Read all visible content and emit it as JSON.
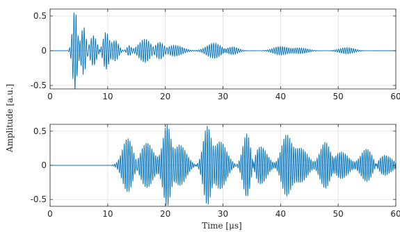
{
  "chart_data": [
    {
      "type": "line",
      "xlim": [
        0,
        60
      ],
      "ylim": [
        -0.55,
        0.6
      ],
      "xticks": [
        0,
        10,
        20,
        30,
        40,
        50,
        60
      ],
      "yticks": [
        -0.5,
        0,
        0.5
      ],
      "xtick_labels": [
        "0",
        "10",
        "20",
        "30",
        "40",
        "50",
        "60"
      ],
      "ytick_labels": [
        "-0.5",
        "0",
        "0.5"
      ],
      "grid": true,
      "line_color": "#0072BD",
      "carrier_freq_per_us": 2.7,
      "packets": [
        {
          "center": 4.3,
          "width": 0.55,
          "amp": 0.6
        },
        {
          "center": 5.8,
          "width": 0.6,
          "amp": 0.35
        },
        {
          "center": 7.5,
          "width": 0.8,
          "amp": 0.22
        },
        {
          "center": 9.7,
          "width": 0.7,
          "amp": 0.27
        },
        {
          "center": 11.3,
          "width": 0.8,
          "amp": 0.15
        },
        {
          "center": 13.7,
          "width": 0.5,
          "amp": 0.07
        },
        {
          "center": 16.5,
          "width": 1.5,
          "amp": 0.17
        },
        {
          "center": 19.0,
          "width": 1.2,
          "amp": 0.14
        },
        {
          "center": 21.5,
          "width": 2.0,
          "amp": 0.08
        },
        {
          "center": 28.5,
          "width": 1.8,
          "amp": 0.11
        },
        {
          "center": 31.5,
          "width": 1.5,
          "amp": 0.06
        },
        {
          "center": 40.0,
          "width": 1.8,
          "amp": 0.06
        },
        {
          "center": 43.5,
          "width": 1.8,
          "amp": 0.04
        },
        {
          "center": 51.5,
          "width": 1.8,
          "amp": 0.045
        }
      ]
    },
    {
      "type": "line",
      "xlim": [
        0,
        60
      ],
      "ylim": [
        -0.6,
        0.6
      ],
      "xticks": [
        0,
        10,
        20,
        30,
        40,
        50,
        60
      ],
      "yticks": [
        -0.5,
        0,
        0.5
      ],
      "xtick_labels": [
        "0",
        "10",
        "20",
        "30",
        "40",
        "50",
        "60"
      ],
      "ytick_labels": [
        "-0.5",
        "0",
        "0.5"
      ],
      "xlabel": "Time [μs]",
      "grid": true,
      "line_color": "#0072BD",
      "carrier_freq_per_us": 3.0,
      "packets": [
        {
          "center": 13.5,
          "width": 1.3,
          "amp": 0.4
        },
        {
          "center": 16.8,
          "width": 1.6,
          "amp": 0.33
        },
        {
          "center": 20.3,
          "width": 1.0,
          "amp": 0.6
        },
        {
          "center": 22.5,
          "width": 1.6,
          "amp": 0.3
        },
        {
          "center": 27.3,
          "width": 1.0,
          "amp": 0.58
        },
        {
          "center": 29.5,
          "width": 1.6,
          "amp": 0.35
        },
        {
          "center": 34.2,
          "width": 1.0,
          "amp": 0.5
        },
        {
          "center": 36.5,
          "width": 1.6,
          "amp": 0.28
        },
        {
          "center": 41.0,
          "width": 1.2,
          "amp": 0.43
        },
        {
          "center": 43.5,
          "width": 1.7,
          "amp": 0.25
        },
        {
          "center": 47.8,
          "width": 1.3,
          "amp": 0.35
        },
        {
          "center": 50.5,
          "width": 1.8,
          "amp": 0.2
        },
        {
          "center": 55.0,
          "width": 1.5,
          "amp": 0.25
        },
        {
          "center": 58.0,
          "width": 1.8,
          "amp": 0.15
        }
      ]
    }
  ],
  "shared_ylabel": "Amplitude [a.u.]"
}
